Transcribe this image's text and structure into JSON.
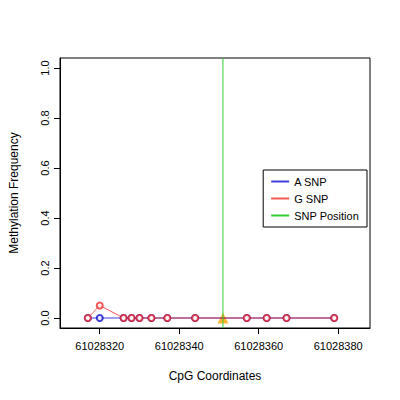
{
  "chart_data": {
    "type": "line",
    "x_label": "CpG Coordinates",
    "y_label": "Methylation Frequency",
    "x": [
      61028317,
      61028320,
      61028326,
      61028328,
      61028330,
      61028333,
      61028337,
      61028344,
      61028357,
      61028362,
      61028367,
      61028379
    ],
    "series": [
      {
        "name": "A SNP",
        "color": "#0000cc",
        "marker": "circle",
        "values": [
          0,
          0,
          0,
          0,
          0,
          0,
          0,
          0,
          0,
          0,
          0,
          0
        ]
      },
      {
        "name": "G SNP",
        "color": "#ee2222",
        "marker": "circle",
        "values": [
          0,
          0.05,
          0,
          0,
          0,
          0,
          0,
          0,
          0,
          0,
          0,
          0
        ]
      }
    ],
    "snp": {
      "name": "SNP Position",
      "color": "#33cc33",
      "value": 61028351,
      "marker": "triangle"
    },
    "xlim": [
      61028310,
      61028388
    ],
    "xticks": [
      61028320,
      61028340,
      61028360,
      61028380
    ],
    "ylim": [
      -0.04,
      1.04
    ],
    "yticks": [
      {
        "value": 0,
        "label": "0.0"
      },
      {
        "value": 0.2,
        "label": "0.2"
      },
      {
        "value": 0.4,
        "label": "0.4"
      },
      {
        "value": 0.6,
        "label": "0.6"
      },
      {
        "value": 0.8,
        "label": "0.8"
      },
      {
        "value": 1,
        "label": "1.0"
      }
    ],
    "legend": "right",
    "grid": false
  }
}
